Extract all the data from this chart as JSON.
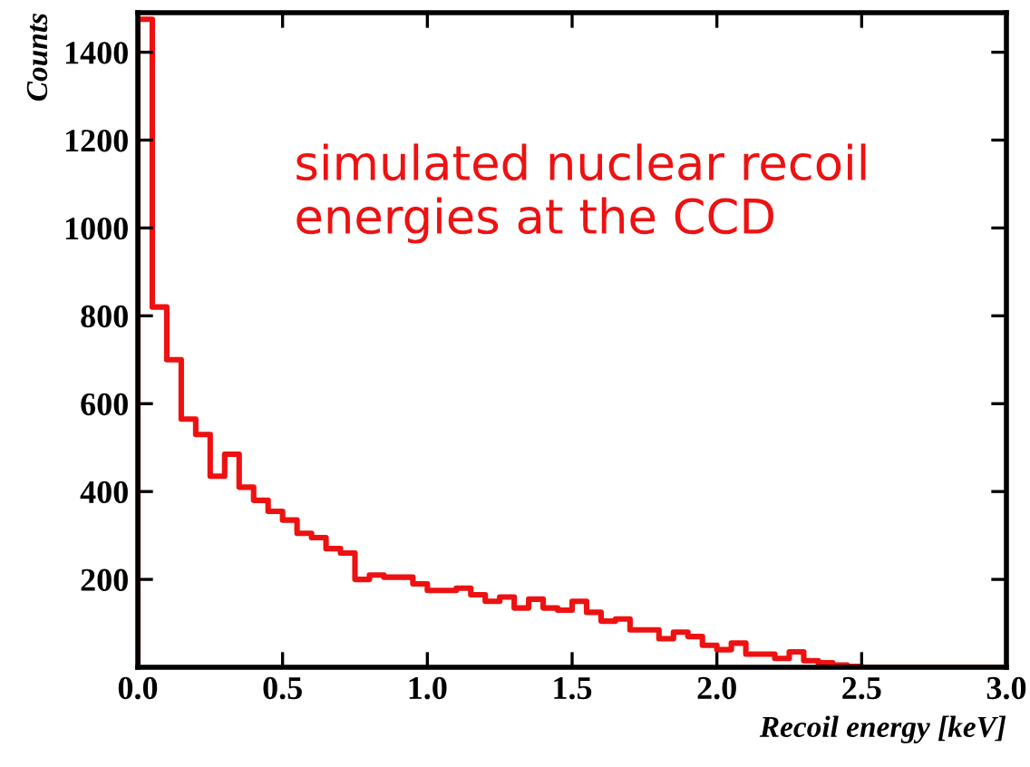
{
  "chart_data": {
    "type": "histogram",
    "xlabel": "Recoil energy [keV]",
    "ylabel": "Counts",
    "color": "#ee1111",
    "annotations": [
      "simulated nuclear recoil energies at the CCD"
    ],
    "bins": [
      0.0,
      0.05,
      0.1,
      0.15,
      0.2,
      0.25,
      0.3,
      0.35,
      0.4,
      0.45,
      0.5,
      0.55,
      0.6,
      0.65,
      0.7,
      0.75,
      0.8,
      0.85,
      0.9,
      0.95,
      1.0,
      1.05,
      1.1,
      1.15,
      1.2,
      1.25,
      1.3,
      1.35,
      1.4,
      1.45,
      1.5,
      1.55,
      1.6,
      1.65,
      1.7,
      1.75,
      1.8,
      1.85,
      1.9,
      1.95,
      2.0,
      2.05,
      2.1,
      2.15,
      2.2,
      2.25,
      2.3,
      2.35,
      2.4,
      2.45,
      2.5,
      2.55,
      2.6,
      2.65,
      2.7,
      2.75,
      2.8,
      2.85,
      2.9,
      2.95,
      3.0
    ],
    "values": [
      1475,
      820,
      700,
      565,
      530,
      435,
      485,
      410,
      380,
      355,
      335,
      305,
      295,
      270,
      260,
      200,
      210,
      205,
      205,
      190,
      175,
      175,
      180,
      165,
      150,
      160,
      135,
      155,
      135,
      130,
      150,
      125,
      105,
      110,
      85,
      85,
      65,
      80,
      70,
      50,
      40,
      55,
      30,
      30,
      20,
      35,
      15,
      10,
      5,
      2,
      0,
      0,
      0,
      0,
      0,
      0,
      0,
      0,
      0,
      0
    ],
    "xlim": [
      0,
      3.0
    ],
    "ylim": [
      0,
      1490
    ],
    "xticks": [
      {
        "value": 0,
        "label": "0.0"
      },
      0.5,
      {
        "value": 1,
        "label": "1.0"
      },
      1.5,
      {
        "value": 2,
        "label": "2.0"
      },
      2.5,
      {
        "value": 3,
        "label": "3.0"
      }
    ],
    "yticks": [
      200,
      400,
      600,
      800,
      1000,
      1200,
      1400
    ],
    "grid": false,
    "legend": false
  }
}
